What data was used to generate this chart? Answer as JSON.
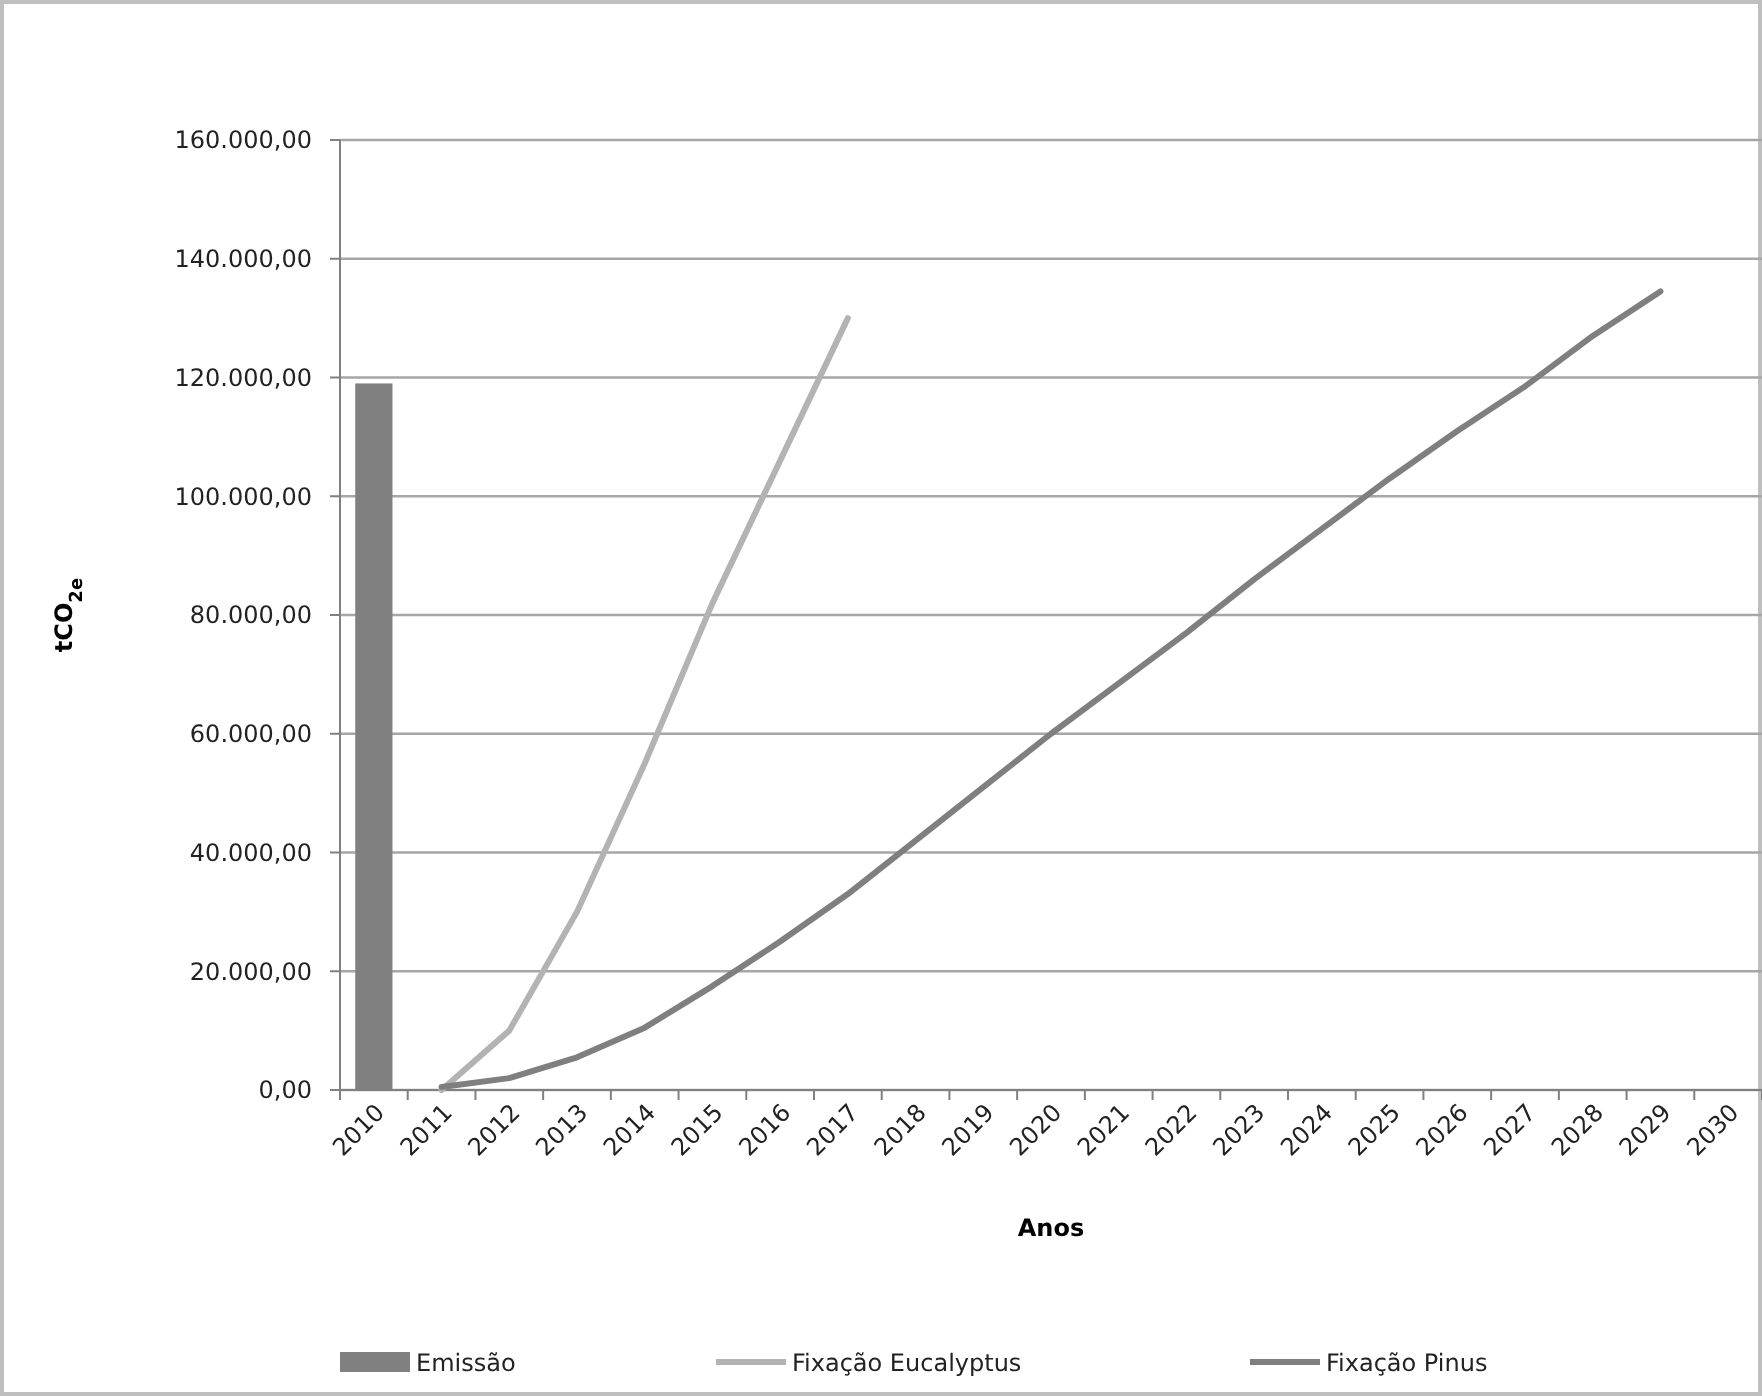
{
  "chart_data": {
    "type": "bar",
    "xlabel": "Anos",
    "ylabel": "tCO$_{2e}$",
    "categories": [
      "2010",
      "2011",
      "2012",
      "2013",
      "2014",
      "2015",
      "2016",
      "2017",
      "2018",
      "2019",
      "2020",
      "2021",
      "2022",
      "2023",
      "2024",
      "2025",
      "2026",
      "2027",
      "2028",
      "2029",
      "2030"
    ],
    "series": [
      {
        "name": "Emissão",
        "color": "#808080",
        "values": [
          119000,
          null,
          null,
          null,
          null,
          null,
          null,
          null,
          null,
          null,
          null,
          null,
          null,
          null,
          null,
          null,
          null,
          null,
          null,
          null,
          null
        ]
      },
      {
        "name": "Fixação Eucalyptus",
        "type": "line",
        "color": "#b3b3b3",
        "values": [
          null,
          0,
          10000,
          30000,
          55000,
          82000,
          106000,
          130000,
          null,
          null,
          null,
          null,
          null,
          null,
          null,
          null,
          null,
          null,
          null,
          null,
          null
        ]
      },
      {
        "name": "Fixação Pinus",
        "type": "line",
        "color": "#7f7f7f",
        "values": [
          null,
          500,
          2000,
          5500,
          10500,
          17500,
          25000,
          33000,
          42000,
          51000,
          60000,
          68500,
          77000,
          86000,
          94500,
          103000,
          111000,
          118500,
          127000,
          134500,
          null
        ]
      }
    ],
    "ylim": [
      0,
      160000
    ],
    "yticks": [
      {
        "value": 0,
        "label": "0,00"
      },
      {
        "value": 20000,
        "label": "20.000,00"
      },
      {
        "value": 40000,
        "label": "40.000,00"
      },
      {
        "value": 60000,
        "label": "60.000,00"
      },
      {
        "value": 80000,
        "label": "80.000,00"
      },
      {
        "value": 100000,
        "label": "100.000,00"
      },
      {
        "value": 120000,
        "label": "120.000,00"
      },
      {
        "value": 140000,
        "label": "140.000,00"
      },
      {
        "value": 160000,
        "label": "160.000,00"
      }
    ],
    "grid": "y",
    "legend": "bottom"
  }
}
